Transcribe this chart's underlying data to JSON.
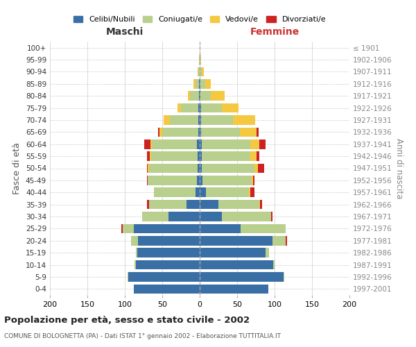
{
  "age_groups": [
    "0-4",
    "5-9",
    "10-14",
    "15-19",
    "20-24",
    "25-29",
    "30-34",
    "35-39",
    "40-44",
    "45-49",
    "50-54",
    "55-59",
    "60-64",
    "65-69",
    "70-74",
    "75-79",
    "80-84",
    "85-89",
    "90-94",
    "95-99",
    "100+"
  ],
  "birth_years": [
    "1997-2001",
    "1992-1996",
    "1987-1991",
    "1982-1986",
    "1977-1981",
    "1972-1976",
    "1967-1971",
    "1962-1966",
    "1957-1961",
    "1952-1956",
    "1947-1951",
    "1942-1946",
    "1937-1941",
    "1932-1936",
    "1927-1931",
    "1922-1926",
    "1917-1921",
    "1912-1916",
    "1907-1911",
    "1902-1906",
    "≤ 1901"
  ],
  "males": {
    "celibi": [
      88,
      95,
      85,
      83,
      82,
      88,
      42,
      18,
      6,
      4,
      3,
      3,
      4,
      2,
      2,
      2,
      1,
      1,
      0,
      0,
      0
    ],
    "coniugati": [
      0,
      1,
      2,
      2,
      10,
      15,
      35,
      50,
      55,
      65,
      65,
      62,
      60,
      48,
      38,
      23,
      12,
      5,
      2,
      1,
      0
    ],
    "vedovi": [
      0,
      0,
      0,
      0,
      0,
      0,
      0,
      0,
      0,
      0,
      1,
      2,
      2,
      4,
      8,
      5,
      3,
      2,
      1,
      0,
      0
    ],
    "divorziati": [
      0,
      0,
      0,
      0,
      0,
      2,
      0,
      2,
      0,
      1,
      1,
      3,
      8,
      2,
      0,
      0,
      0,
      0,
      0,
      0,
      0
    ]
  },
  "females": {
    "nubili": [
      92,
      112,
      98,
      88,
      97,
      55,
      30,
      25,
      8,
      4,
      3,
      3,
      3,
      2,
      2,
      2,
      1,
      1,
      0,
      0,
      0
    ],
    "coniugate": [
      0,
      1,
      2,
      5,
      18,
      60,
      65,
      55,
      58,
      65,
      70,
      65,
      65,
      52,
      42,
      28,
      14,
      6,
      3,
      1,
      0
    ],
    "vedove": [
      0,
      0,
      0,
      0,
      0,
      0,
      0,
      1,
      2,
      2,
      5,
      8,
      12,
      22,
      30,
      22,
      18,
      8,
      3,
      1,
      0
    ],
    "divorziate": [
      0,
      0,
      0,
      0,
      2,
      0,
      2,
      2,
      5,
      2,
      8,
      4,
      8,
      3,
      0,
      0,
      0,
      0,
      0,
      0,
      0
    ]
  },
  "colors": {
    "celibi": "#3a6fa6",
    "coniugati": "#b8cf8e",
    "vedovi": "#f5c842",
    "divorziati": "#cc2222"
  },
  "xlim": 200,
  "title": "Popolazione per età, sesso e stato civile - 2002",
  "subtitle": "COMUNE DI BOLOGNETTA (PA) - Dati ISTAT 1° gennaio 2002 - Elaborazione TUTTITALIA.IT",
  "xlabel_left": "Maschi",
  "xlabel_right": "Femmine",
  "ylabel": "Fasce di età",
  "ylabel_right": "Anni di nascita",
  "legend_labels": [
    "Celibi/Nubili",
    "Coniugati/e",
    "Vedovi/e",
    "Divorziati/e"
  ],
  "background_color": "#ffffff",
  "grid_color": "#cccccc"
}
